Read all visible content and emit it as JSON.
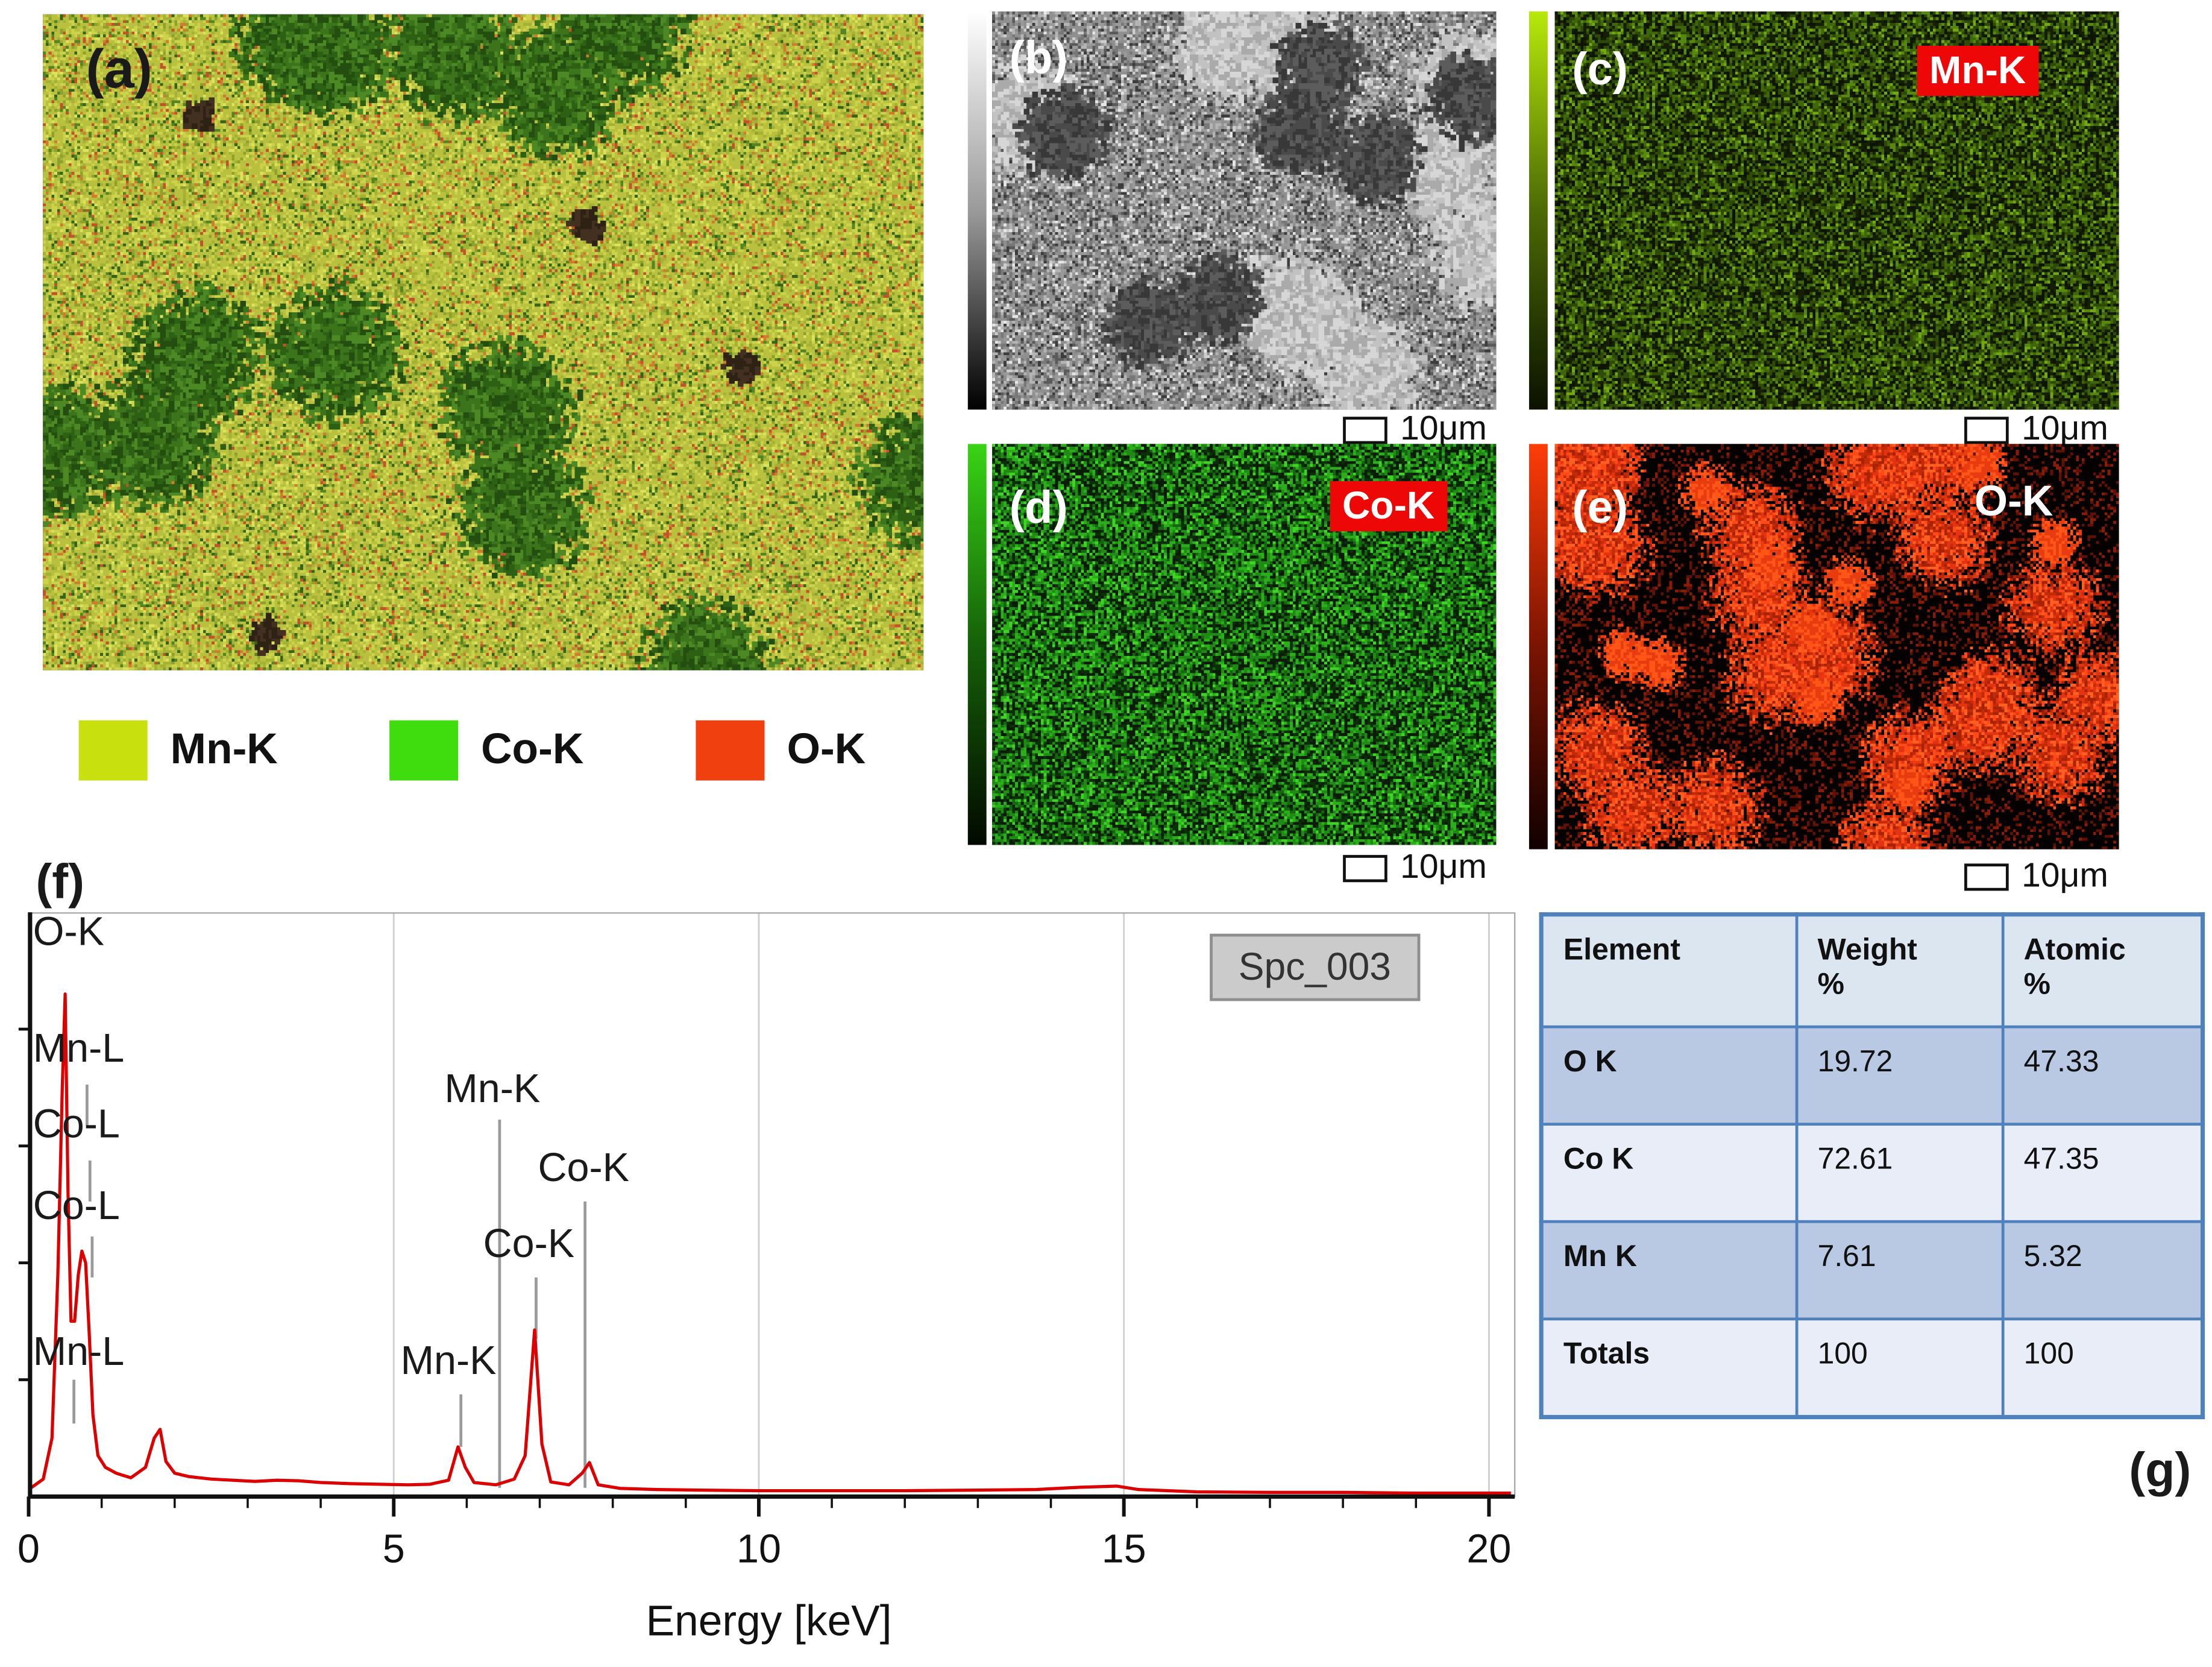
{
  "figure": {
    "panel_a": {
      "label": "(a)"
    },
    "legend": [
      {
        "label": "Mn-K",
        "color": "#c8e00e"
      },
      {
        "label": "Co-K",
        "color": "#3fdd0e"
      },
      {
        "label": "O-K",
        "color": "#f04010"
      }
    ],
    "panel_b": {
      "label": "(b)",
      "scale": "10μm"
    },
    "panel_c": {
      "label": "(c)",
      "tag": "Mn-K",
      "tag_bg": "#ee0707",
      "scale": "10μm"
    },
    "panel_d": {
      "label": "(d)",
      "tag": "Co-K",
      "tag_bg": "#ee0707",
      "scale": "10μm"
    },
    "panel_e": {
      "label": "(e)",
      "tag": "O-K",
      "scale": "10μm"
    },
    "panel_f": {
      "label": "(f)"
    },
    "panel_g": {
      "label": "(g)"
    }
  },
  "chart_data": {
    "type": "line",
    "title": "EDS spectrum",
    "xlabel": "Energy [keV]",
    "ylabel": "",
    "xlim": [
      0,
      20.35
    ],
    "x_ticks": [
      0,
      5,
      10,
      15,
      20
    ],
    "x_gridlines": [
      5,
      10,
      15,
      20
    ],
    "grid": "vertical-only",
    "spectrum_label": "Spc_003",
    "series": [
      {
        "name": "Spc_003",
        "color": "#dd0000",
        "points_note": "[energy_keV, intensity fraction of plot height]",
        "points": [
          [
            0,
            0.012
          ],
          [
            0.2,
            0.03
          ],
          [
            0.32,
            0.1
          ],
          [
            0.4,
            0.38
          ],
          [
            0.46,
            0.7
          ],
          [
            0.5,
            0.86
          ],
          [
            0.54,
            0.52
          ],
          [
            0.58,
            0.3
          ],
          [
            0.63,
            0.3
          ],
          [
            0.68,
            0.38
          ],
          [
            0.73,
            0.42
          ],
          [
            0.78,
            0.4
          ],
          [
            0.83,
            0.28
          ],
          [
            0.88,
            0.14
          ],
          [
            0.95,
            0.07
          ],
          [
            1.05,
            0.05
          ],
          [
            1.2,
            0.04
          ],
          [
            1.4,
            0.032
          ],
          [
            1.6,
            0.05
          ],
          [
            1.72,
            0.1
          ],
          [
            1.8,
            0.115
          ],
          [
            1.88,
            0.06
          ],
          [
            2.0,
            0.04
          ],
          [
            2.2,
            0.034
          ],
          [
            2.5,
            0.03
          ],
          [
            2.8,
            0.028
          ],
          [
            3.1,
            0.026
          ],
          [
            3.4,
            0.028
          ],
          [
            3.7,
            0.027
          ],
          [
            4.0,
            0.024
          ],
          [
            4.4,
            0.022
          ],
          [
            4.8,
            0.021
          ],
          [
            5.2,
            0.02
          ],
          [
            5.5,
            0.021
          ],
          [
            5.75,
            0.028
          ],
          [
            5.88,
            0.085
          ],
          [
            5.98,
            0.05
          ],
          [
            6.1,
            0.024
          ],
          [
            6.4,
            0.02
          ],
          [
            6.65,
            0.03
          ],
          [
            6.8,
            0.07
          ],
          [
            6.93,
            0.285
          ],
          [
            7.03,
            0.09
          ],
          [
            7.15,
            0.025
          ],
          [
            7.4,
            0.02
          ],
          [
            7.58,
            0.04
          ],
          [
            7.68,
            0.058
          ],
          [
            7.8,
            0.02
          ],
          [
            8.1,
            0.014
          ],
          [
            8.6,
            0.012
          ],
          [
            9.2,
            0.011
          ],
          [
            10,
            0.01
          ],
          [
            11,
            0.01
          ],
          [
            12,
            0.01
          ],
          [
            13,
            0.011
          ],
          [
            13.8,
            0.012
          ],
          [
            14.4,
            0.016
          ],
          [
            14.9,
            0.018
          ],
          [
            15.2,
            0.012
          ],
          [
            16,
            0.008
          ],
          [
            17,
            0.007
          ],
          [
            18,
            0.007
          ],
          [
            19,
            0.006
          ],
          [
            20.3,
            0.006
          ]
        ]
      }
    ],
    "annotations": [
      {
        "text": "O-K",
        "x": 0.06,
        "y": 0.056,
        "anchor": "start"
      },
      {
        "text": "Mn-L",
        "x": 0.06,
        "y": 0.256,
        "anchor": "start"
      },
      {
        "text": "Co-L",
        "x": 0.06,
        "y": 0.385,
        "anchor": "start"
      },
      {
        "text": "Co-L",
        "x": 0.06,
        "y": 0.525,
        "anchor": "start"
      },
      {
        "text": "Mn-L",
        "x": 0.06,
        "y": 0.775,
        "anchor": "start"
      },
      {
        "text": "Mn-K",
        "x": 6.35,
        "y": 0.325,
        "anchor": "middle"
      },
      {
        "text": "Co-K",
        "x": 7.6,
        "y": 0.46,
        "anchor": "middle"
      },
      {
        "text": "Co-K",
        "x": 6.85,
        "y": 0.59,
        "anchor": "middle"
      },
      {
        "text": "Mn-K",
        "x": 5.75,
        "y": 0.79,
        "anchor": "middle"
      }
    ],
    "markers": [
      {
        "x": 0.8,
        "y1": 0.295,
        "y2": 0.365
      },
      {
        "x": 0.84,
        "y1": 0.425,
        "y2": 0.495
      },
      {
        "x": 0.87,
        "y1": 0.555,
        "y2": 0.625
      },
      {
        "x": 0.62,
        "y1": 0.8,
        "y2": 0.875
      },
      {
        "x": 6.45,
        "y1": 0.355,
        "y2": 0.985
      },
      {
        "x": 7.62,
        "y1": 0.495,
        "y2": 0.985
      },
      {
        "x": 6.95,
        "y1": 0.625,
        "y2": 0.73
      },
      {
        "x": 5.92,
        "y1": 0.825,
        "y2": 0.915
      }
    ]
  },
  "table": {
    "headers": [
      "Element",
      "Weight %",
      "Atomic %"
    ],
    "rows": [
      [
        "O K",
        "19.72",
        "47.33"
      ],
      [
        "Co K",
        "72.61",
        "47.35"
      ],
      [
        "Mn K",
        "7.61",
        "5.32"
      ],
      [
        "Totals",
        "100",
        "100"
      ]
    ]
  },
  "noise": {
    "panel_a": {
      "seed": 7,
      "bg": "#b9bf3e",
      "density": 1.3,
      "palette": [
        {
          "c": "#ccd24a",
          "w": 0.26
        },
        {
          "c": "#b9c23c",
          "w": 0.18
        },
        {
          "c": "#a3b134",
          "w": 0.14
        },
        {
          "c": "#dde25c",
          "w": 0.08
        },
        {
          "c": "#8fa02c",
          "w": 0.08
        },
        {
          "c": "#d07c2e",
          "w": 0.07
        },
        {
          "c": "#c2522a",
          "w": 0.05
        },
        {
          "c": "#558422",
          "w": 0.09
        },
        {
          "c": "#356418",
          "w": 0.05
        }
      ],
      "clusters": [
        {
          "count": 13,
          "dots": 2200,
          "spread": 27,
          "size": 2,
          "colors": [
            "#3c741c",
            "#2e6014",
            "#4c8824",
            "#234e10"
          ]
        },
        {
          "count": 4,
          "dots": 160,
          "spread": 7,
          "size": 2,
          "colors": [
            "#443020",
            "#2e2214"
          ]
        }
      ]
    },
    "panel_b": {
      "seed": 11,
      "bg": "#8f8f8f",
      "density": 1.5,
      "palette": [
        {
          "c": "#5a5a5a",
          "w": 0.18
        },
        {
          "c": "#787878",
          "w": 0.2
        },
        {
          "c": "#9a9a9a",
          "w": 0.2
        },
        {
          "c": "#b4b4b4",
          "w": 0.16
        },
        {
          "c": "#cdcdcd",
          "w": 0.1
        },
        {
          "c": "#3c3c3c",
          "w": 0.1
        },
        {
          "c": "#e6e6e6",
          "w": 0.06
        }
      ],
      "clusters": [
        {
          "count": 9,
          "dots": 1400,
          "spread": 22,
          "size": 2,
          "colors": [
            "#c2c2c2",
            "#d6d6d6",
            "#aaaaaa"
          ]
        },
        {
          "count": 7,
          "dots": 1100,
          "spread": 18,
          "size": 2,
          "colors": [
            "#4a4a4a",
            "#5c5c5c",
            "#383838"
          ]
        }
      ]
    },
    "panel_c": {
      "seed": 23,
      "bg": "#152003",
      "density": 1.5,
      "palette": [
        {
          "c": "#2e4a06",
          "w": 0.28
        },
        {
          "c": "#40660a",
          "w": 0.24
        },
        {
          "c": "#57870e",
          "w": 0.16
        },
        {
          "c": "#73a812",
          "w": 0.08
        },
        {
          "c": "#0d1502",
          "w": 0.24
        }
      ],
      "clusters": []
    },
    "panel_d": {
      "seed": 31,
      "bg": "#0a1c05",
      "density": 1.5,
      "palette": [
        {
          "c": "#1f8a14",
          "w": 0.24
        },
        {
          "c": "#2cae1c",
          "w": 0.22
        },
        {
          "c": "#41d226",
          "w": 0.12
        },
        {
          "c": "#166511",
          "w": 0.18
        },
        {
          "c": "#0b2f07",
          "w": 0.24
        }
      ],
      "clusters": []
    },
    "panel_e": {
      "seed": 41,
      "bg": "#060101",
      "density": 0.3,
      "palette": [
        {
          "c": "#5f1204",
          "w": 0.55
        },
        {
          "c": "#8a1c06",
          "w": 0.45
        }
      ],
      "clusters": [
        {
          "count": 24,
          "dots": 2400,
          "spread": 21,
          "size": 1,
          "colors": [
            "#e23412",
            "#ff4a18",
            "#c22a08",
            "#ff5f20",
            "#a82206"
          ]
        },
        {
          "count": 10,
          "dots": 700,
          "spread": 11,
          "size": 1,
          "colors": [
            "#ff5516",
            "#e83c10"
          ]
        }
      ]
    }
  }
}
